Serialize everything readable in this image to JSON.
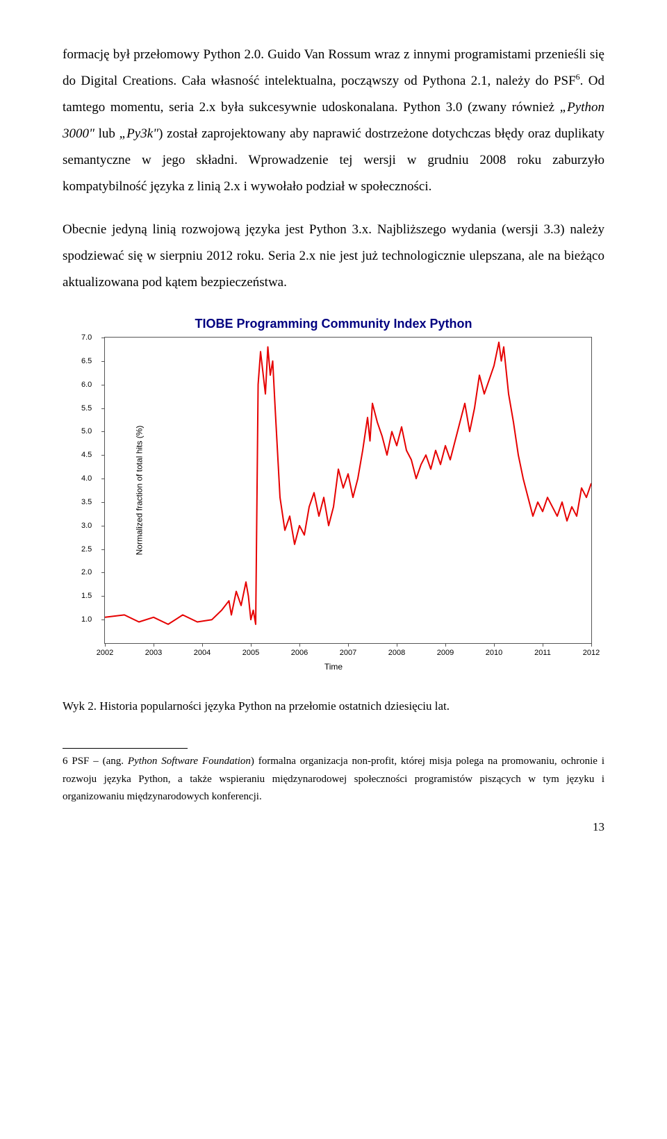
{
  "para1": "formację był przełomowy Python 2.0. Guido Van Rossum wraz z innymi programistami przenieśli się do Digital Creations. Cała własność intelektualna, począwszy od Pythona 2.1, należy do PSF",
  "para1_sup": "6",
  "para1_cont": ". Od tamtego momentu, seria 2.x była sukcesywnie udoskonalana. Python 3.0 (zwany również ",
  "para1_italic1": "„Python 3000\"",
  "para1_mid": " lub ",
  "para1_italic2": "„Py3k\"",
  "para1_end": ") został zaprojektowany aby naprawić dostrzeżone dotychczas błędy oraz duplikaty semantyczne w jego składni. Wprowadzenie tej wersji w grudniu 2008 roku zaburzyło kompatybilność języka z linią 2.x i wywołało podział w społeczności.",
  "para2": "Obecnie jedyną linią rozwojową języka jest Python 3.x. Najbliższego wydania (wersji 3.3) należy spodziewać się w sierpniu 2012 roku. Seria 2.x nie jest już technologicznie ulepszana, ale na bieżąco aktualizowana pod kątem bezpieczeństwa.",
  "chart": {
    "title": "TIOBE Programming Community Index Python",
    "ylabel": "Normalized fraction of total hits (%)",
    "xlabel": "Time",
    "ylim": [
      0.5,
      7.0
    ],
    "yticks": [
      "1.0",
      "1.5",
      "2.0",
      "2.5",
      "3.0",
      "3.5",
      "4.0",
      "4.5",
      "5.0",
      "5.5",
      "6.0",
      "6.5",
      "7.0"
    ],
    "xticks": [
      "2002",
      "2003",
      "2004",
      "2005",
      "2006",
      "2007",
      "2008",
      "2009",
      "2010",
      "2011",
      "2012"
    ],
    "line_color": "#e60000",
    "border_color": "#555555",
    "line_width": 2,
    "points": [
      [
        0.0,
        1.05
      ],
      [
        0.04,
        1.1
      ],
      [
        0.07,
        0.95
      ],
      [
        0.1,
        1.05
      ],
      [
        0.13,
        0.9
      ],
      [
        0.16,
        1.1
      ],
      [
        0.19,
        0.95
      ],
      [
        0.22,
        1.0
      ],
      [
        0.24,
        1.2
      ],
      [
        0.255,
        1.4
      ],
      [
        0.26,
        1.1
      ],
      [
        0.27,
        1.6
      ],
      [
        0.28,
        1.3
      ],
      [
        0.29,
        1.8
      ],
      [
        0.295,
        1.5
      ],
      [
        0.3,
        1.0
      ],
      [
        0.305,
        1.2
      ],
      [
        0.31,
        0.9
      ],
      [
        0.315,
        6.0
      ],
      [
        0.32,
        6.7
      ],
      [
        0.33,
        5.8
      ],
      [
        0.335,
        6.8
      ],
      [
        0.34,
        6.2
      ],
      [
        0.345,
        6.5
      ],
      [
        0.35,
        5.5
      ],
      [
        0.36,
        3.6
      ],
      [
        0.37,
        2.9
      ],
      [
        0.38,
        3.2
      ],
      [
        0.39,
        2.6
      ],
      [
        0.4,
        3.0
      ],
      [
        0.41,
        2.8
      ],
      [
        0.42,
        3.4
      ],
      [
        0.43,
        3.7
      ],
      [
        0.44,
        3.2
      ],
      [
        0.45,
        3.6
      ],
      [
        0.46,
        3.0
      ],
      [
        0.47,
        3.4
      ],
      [
        0.48,
        4.2
      ],
      [
        0.49,
        3.8
      ],
      [
        0.5,
        4.1
      ],
      [
        0.51,
        3.6
      ],
      [
        0.52,
        4.0
      ],
      [
        0.53,
        4.6
      ],
      [
        0.54,
        5.3
      ],
      [
        0.545,
        4.8
      ],
      [
        0.55,
        5.6
      ],
      [
        0.56,
        5.2
      ],
      [
        0.57,
        4.9
      ],
      [
        0.58,
        4.5
      ],
      [
        0.59,
        5.0
      ],
      [
        0.6,
        4.7
      ],
      [
        0.61,
        5.1
      ],
      [
        0.62,
        4.6
      ],
      [
        0.63,
        4.4
      ],
      [
        0.64,
        4.0
      ],
      [
        0.65,
        4.3
      ],
      [
        0.66,
        4.5
      ],
      [
        0.67,
        4.2
      ],
      [
        0.68,
        4.6
      ],
      [
        0.69,
        4.3
      ],
      [
        0.7,
        4.7
      ],
      [
        0.71,
        4.4
      ],
      [
        0.72,
        4.8
      ],
      [
        0.73,
        5.2
      ],
      [
        0.74,
        5.6
      ],
      [
        0.75,
        5.0
      ],
      [
        0.76,
        5.5
      ],
      [
        0.77,
        6.2
      ],
      [
        0.78,
        5.8
      ],
      [
        0.79,
        6.1
      ],
      [
        0.8,
        6.4
      ],
      [
        0.81,
        6.9
      ],
      [
        0.815,
        6.5
      ],
      [
        0.82,
        6.8
      ],
      [
        0.83,
        5.8
      ],
      [
        0.84,
        5.2
      ],
      [
        0.85,
        4.5
      ],
      [
        0.86,
        4.0
      ],
      [
        0.87,
        3.6
      ],
      [
        0.88,
        3.2
      ],
      [
        0.89,
        3.5
      ],
      [
        0.9,
        3.3
      ],
      [
        0.91,
        3.6
      ],
      [
        0.92,
        3.4
      ],
      [
        0.93,
        3.2
      ],
      [
        0.94,
        3.5
      ],
      [
        0.95,
        3.1
      ],
      [
        0.96,
        3.4
      ],
      [
        0.97,
        3.2
      ],
      [
        0.98,
        3.8
      ],
      [
        0.99,
        3.6
      ],
      [
        1.0,
        3.9
      ]
    ]
  },
  "caption": "Wyk 2. Historia popularności języka Python na przełomie ostatnich dziesięciu lat.",
  "footnote_num": "6",
  "footnote_lead": " PSF – (ang. ",
  "footnote_italic": "Python Software Foundation",
  "footnote_rest": ") formalna organizacja non-profit, której misja polega na promowaniu, ochronie i rozwoju języka Python, a także wspieraniu międzynarodowej społeczności programistów piszących w tym języku i organizowaniu międzynarodowych konferencji.",
  "page_number": "13"
}
